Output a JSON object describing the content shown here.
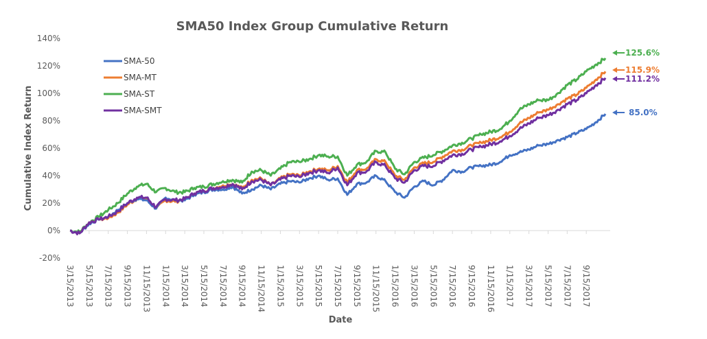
{
  "chart_data": {
    "type": "line",
    "title": "SMA50 Index Group Cumulative Return",
    "xlabel": "Date",
    "ylabel": "Cumulative Index Return",
    "ylim": [
      -20,
      140
    ],
    "yticks": [
      140,
      120,
      100,
      80,
      60,
      40,
      20,
      0,
      -20
    ],
    "ytick_labels": [
      "140%",
      "120%",
      "100%",
      "80%",
      "60%",
      "40%",
      "20%",
      "0%",
      "-20%"
    ],
    "xtick_labels": [
      "3/15/2013",
      "5/15/2013",
      "7/15/2013",
      "9/15/2013",
      "11/15/2013",
      "1/15/2014",
      "3/15/2014",
      "5/15/2014",
      "7/15/2014",
      "9/15/2014",
      "11/15/2014",
      "1/15/2015",
      "3/15/2015",
      "5/15/2015",
      "7/15/2015",
      "9/15/2015",
      "11/15/2015",
      "1/15/2016",
      "3/15/2016",
      "5/15/2016",
      "7/15/2016",
      "9/15/2016",
      "11/15/2016",
      "1/15/2017",
      "3/15/2017",
      "5/15/2017",
      "7/15/2017",
      "9/15/2017"
    ],
    "x_months": [
      0,
      1,
      2,
      3,
      4,
      5,
      6,
      7,
      8,
      9,
      10,
      11,
      12,
      13,
      14,
      15,
      16,
      17,
      18,
      19,
      20,
      21,
      22,
      23,
      24,
      25,
      26,
      27,
      28,
      29,
      30,
      31,
      32,
      33,
      34,
      35,
      36,
      37,
      38,
      39,
      40,
      41,
      42,
      43,
      44,
      45,
      46,
      47,
      48,
      49,
      50,
      51,
      52,
      53,
      54,
      55,
      56
    ],
    "x_unit": "months since 3/15/2013",
    "x_max": 56.5,
    "legend_position": "top-left",
    "grid": false,
    "series": [
      {
        "name": "SMA-50",
        "color": "#4472C4",
        "end_label": "85.0%",
        "values": [
          0,
          -2,
          5,
          8,
          10,
          15,
          20,
          23,
          22,
          16,
          24,
          22,
          22,
          26,
          28,
          30,
          30,
          32,
          27,
          30,
          33,
          30,
          34,
          36,
          35,
          38,
          40,
          37,
          38,
          26,
          34,
          35,
          40,
          36,
          28,
          24,
          32,
          36,
          33,
          37,
          44,
          43,
          46,
          47,
          48,
          50,
          55,
          57,
          59,
          62,
          63,
          66,
          68,
          71,
          74,
          79,
          85
        ]
      },
      {
        "name": "SMA-MT",
        "color": "#ED7D31",
        "end_label": "115.9%",
        "values": [
          0,
          -2,
          6,
          8,
          9,
          13,
          19,
          23,
          23,
          16,
          22,
          21,
          23,
          27,
          29,
          31,
          33,
          34,
          31,
          37,
          38,
          33,
          38,
          41,
          40,
          43,
          45,
          44,
          47,
          35,
          44,
          45,
          52,
          50,
          40,
          37,
          46,
          49,
          50,
          54,
          58,
          59,
          62,
          64,
          66,
          68,
          72,
          78,
          82,
          86,
          88,
          92,
          96,
          99,
          104,
          110,
          115.9
        ]
      },
      {
        "name": "SMA-ST",
        "color": "#4CAF50",
        "end_label": "125.6%",
        "values": [
          0,
          -1,
          6,
          10,
          15,
          20,
          27,
          32,
          34,
          28,
          31,
          28,
          28,
          31,
          32,
          34,
          36,
          37,
          35,
          43,
          44,
          40,
          45,
          50,
          50,
          52,
          55,
          54,
          54,
          40,
          48,
          50,
          58,
          57,
          45,
          41,
          50,
          53,
          55,
          58,
          62,
          64,
          67,
          70,
          72,
          74,
          80,
          88,
          92,
          95,
          95,
          100,
          106,
          110,
          116,
          121,
          125.6
        ]
      },
      {
        "name": "SMA-SMT",
        "color": "#7030A0",
        "end_label": "111.2%",
        "values": [
          0,
          -2,
          6,
          8,
          10,
          14,
          20,
          24,
          24,
          17,
          23,
          22,
          23,
          27,
          29,
          31,
          32,
          34,
          30,
          36,
          37,
          33,
          37,
          40,
          39,
          42,
          44,
          42,
          46,
          33,
          42,
          43,
          50,
          47,
          38,
          35,
          44,
          47,
          47,
          51,
          55,
          56,
          59,
          61,
          63,
          65,
          69,
          74,
          78,
          82,
          84,
          88,
          92,
          95,
          100,
          106,
          111.2
        ]
      }
    ]
  }
}
